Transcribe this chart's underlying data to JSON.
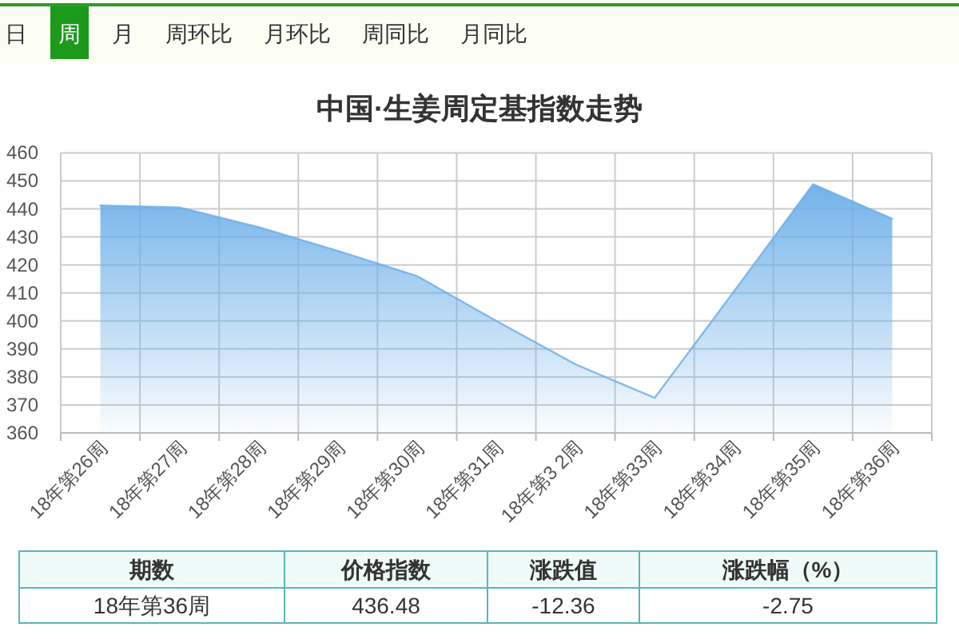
{
  "chart_data": [
    {
      "type": "other",
      "categories": [
        "日",
        "周",
        "月",
        "周环比",
        "月环比",
        "周同比",
        "月同比"
      ],
      "colors": [
        "#fcfdf3",
        "#1c9a1c",
        "#fcfdf3",
        "#fcfdf3",
        "#fcfdf3",
        "#fcfdf3",
        "#fcfdf3"
      ]
    },
    {
      "type": "area",
      "title": "中国·生姜周定基指数走势",
      "categories": [
        "18年第26周",
        "18年第27周",
        "18年第28周",
        "18年第29周",
        "18年第30周",
        "18年第31周",
        "18年第3 2周",
        "18年第33周",
        "18年第34周",
        "18年第35周",
        "18年第36周"
      ],
      "values": [
        441.2,
        440.5,
        433.5,
        425,
        416,
        400,
        384.5,
        372.5,
        410.5,
        448.8,
        436.5
      ],
      "color": "#6aaee8",
      "ylim": [
        360,
        460
      ],
      "yticks": [
        360,
        370,
        380,
        390,
        400,
        410,
        420,
        430,
        440,
        450,
        460
      ],
      "grid": true
    },
    {
      "type": "other",
      "categories": [
        "期数",
        "价格指数",
        "涨跌值",
        "涨跌幅（%）"
      ],
      "annotations": [
        "18年第36周",
        "436.48",
        "-12.36",
        "-2.75"
      ]
    }
  ]
}
